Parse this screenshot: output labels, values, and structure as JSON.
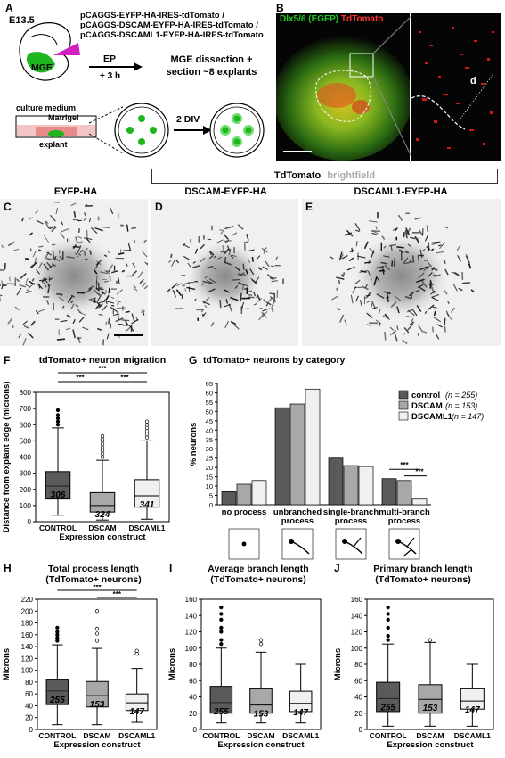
{
  "panel_A": {
    "letter": "A",
    "stage": "E13.5",
    "constructs": [
      "pCAGGS-EYFP-HA-IRES-tdTomato /",
      "pCAGGS-DSCAM-EYFP-HA-IRES-tdTomato /",
      "pCAGGS-DSCAML1-EYFP-HA-IRES-tdTomato"
    ],
    "mge_label": "MGE",
    "ep_label": "EP",
    "ep_time": "+ 3 h",
    "dissection_text": [
      "MGE dissection +",
      "section ~8 explants"
    ],
    "culture_medium": "culture medium",
    "matrigel": "Matrigel",
    "explant": "explant",
    "div": "2 DIV"
  },
  "panel_B": {
    "letter": "B",
    "title_green": "Dlx5/6 (EGFP)",
    "title_red": "TdTomato",
    "distance_label": "d"
  },
  "micrographs": {
    "header_dark": "TdTomato",
    "header_light": "brightfield",
    "panels": [
      {
        "letter": "C",
        "title": "EYFP-HA"
      },
      {
        "letter": "D",
        "title": "DSCAM-EYFP-HA"
      },
      {
        "letter": "E",
        "title": "DSCAML1-EYFP-HA"
      }
    ]
  },
  "colors": {
    "control": "#5a5a5a",
    "dscam": "#a8a8a8",
    "dscaml1": "#f0f0f0",
    "green": "#22aa22",
    "red": "#dd2222"
  },
  "panel_F": {
    "letter": "F",
    "chart_data": {
      "type": "box",
      "title": "tdTomato+ neuron migration",
      "ylabel": "Distance from explant edge (microns)",
      "xlabel": "Expression construct",
      "ylim": [
        0,
        800
      ],
      "yticks": [
        0,
        100,
        200,
        300,
        400,
        500,
        600,
        700,
        800
      ],
      "categories": [
        "CONTROL",
        "DSCAM",
        "DSCAML1"
      ],
      "n": [
        "306",
        "324",
        "341"
      ],
      "boxes": [
        {
          "whisker_low": 40,
          "q1": 140,
          "median": 220,
          "q3": 310,
          "whisker_high": 580,
          "outliers": [
            600,
            620,
            640,
            660,
            690
          ]
        },
        {
          "whisker_low": 10,
          "q1": 60,
          "median": 100,
          "q3": 180,
          "whisker_high": 380,
          "outliers": [
            400,
            420,
            440,
            460,
            480,
            500,
            510,
            530
          ]
        },
        {
          "whisker_low": 15,
          "q1": 90,
          "median": 160,
          "q3": 260,
          "whisker_high": 500,
          "outliers": [
            520,
            540,
            560,
            580,
            600,
            620
          ]
        }
      ],
      "significance": [
        "***",
        "***",
        "***"
      ]
    }
  },
  "panel_G": {
    "letter": "G",
    "chart_data": {
      "type": "bar",
      "title": "tdTomato+ neurons by category",
      "ylabel": "% neurons",
      "ylim": [
        0,
        65
      ],
      "yticks": [
        0,
        5,
        10,
        15,
        20,
        25,
        30,
        35,
        40,
        45,
        50,
        55,
        60,
        65
      ],
      "categories": [
        [
          "no process"
        ],
        [
          "unbranched",
          "process"
        ],
        [
          "single-branch",
          "process"
        ],
        [
          "multi-branch",
          "process"
        ]
      ],
      "series": [
        {
          "name": "control",
          "n": "(n = 255)",
          "values": [
            7,
            52,
            25,
            14
          ]
        },
        {
          "name": "DSCAM",
          "n": "(n = 153)",
          "values": [
            11,
            54,
            21,
            13
          ]
        },
        {
          "name": "DSCAML1",
          "n": "(n = 147)",
          "values": [
            13,
            62,
            20.5,
            3
          ]
        }
      ],
      "significance": [
        "***",
        "***"
      ]
    }
  },
  "panel_H": {
    "letter": "H",
    "chart_data": {
      "type": "box",
      "title": [
        "Total process length",
        "(TdTomato+ neurons)"
      ],
      "ylabel": "Microns",
      "xlabel": "Expression construct",
      "ylim": [
        0,
        220
      ],
      "yticks": [
        0,
        20,
        40,
        60,
        80,
        100,
        120,
        140,
        160,
        180,
        200,
        220
      ],
      "categories": [
        "CONTROL",
        "DSCAM",
        "DSCAML1"
      ],
      "n": [
        "255",
        "153",
        "147"
      ],
      "boxes": [
        {
          "whisker_low": 8,
          "q1": 42,
          "median": 65,
          "q3": 85,
          "whisker_high": 143,
          "outliers": [
            150,
            155,
            160,
            165,
            172
          ]
        },
        {
          "whisker_low": 8,
          "q1": 38,
          "median": 57,
          "q3": 81,
          "whisker_high": 137,
          "outliers": [
            150,
            162,
            170,
            200
          ]
        },
        {
          "whisker_low": 12,
          "q1": 32,
          "median": 45,
          "q3": 60,
          "whisker_high": 103,
          "outliers": [
            128,
            133
          ]
        }
      ],
      "significance": [
        "***",
        "***"
      ]
    }
  },
  "panel_I": {
    "letter": "I",
    "chart_data": {
      "type": "box",
      "title": [
        "Average branch length",
        "(TdTomato+ neurons)"
      ],
      "ylabel": "Microns",
      "xlabel": "Expression construct",
      "ylim": [
        0,
        160
      ],
      "yticks": [
        0,
        20,
        40,
        60,
        80,
        100,
        120,
        140,
        160
      ],
      "categories": [
        "CONTROL",
        "DSCAM",
        "DSCAML1"
      ],
      "n": [
        "255",
        "153",
        "147"
      ],
      "boxes": [
        {
          "whisker_low": 8,
          "q1": 20,
          "median": 33,
          "q3": 53,
          "whisker_high": 100,
          "outliers": [
            105,
            110,
            120,
            125,
            135,
            142,
            150
          ]
        },
        {
          "whisker_low": 8,
          "q1": 20,
          "median": 30,
          "q3": 50,
          "whisker_high": 95,
          "outliers": [
            105,
            110
          ]
        },
        {
          "whisker_low": 8,
          "q1": 22,
          "median": 32,
          "q3": 47,
          "whisker_high": 80,
          "outliers": []
        }
      ]
    }
  },
  "panel_J": {
    "letter": "J",
    "chart_data": {
      "type": "box",
      "title": [
        "Primary branch length",
        "(TdTomato+ neurons)"
      ],
      "ylabel": "Microns",
      "xlabel": "Expression construct",
      "ylim": [
        0,
        160
      ],
      "yticks": [
        0,
        20,
        40,
        60,
        80,
        100,
        120,
        140,
        160
      ],
      "categories": [
        "CONTROL",
        "DSCAM",
        "DSCAML1"
      ],
      "n": [
        "255",
        "153",
        "147"
      ],
      "boxes": [
        {
          "whisker_low": 4,
          "q1": 22,
          "median": 38,
          "q3": 58,
          "whisker_high": 105,
          "outliers": [
            110,
            115,
            125,
            135,
            142,
            150
          ]
        },
        {
          "whisker_low": 4,
          "q1": 20,
          "median": 37,
          "q3": 55,
          "whisker_high": 107,
          "outliers": [
            110
          ]
        },
        {
          "whisker_low": 4,
          "q1": 25,
          "median": 35,
          "q3": 50,
          "whisker_high": 80,
          "outliers": []
        }
      ]
    }
  }
}
